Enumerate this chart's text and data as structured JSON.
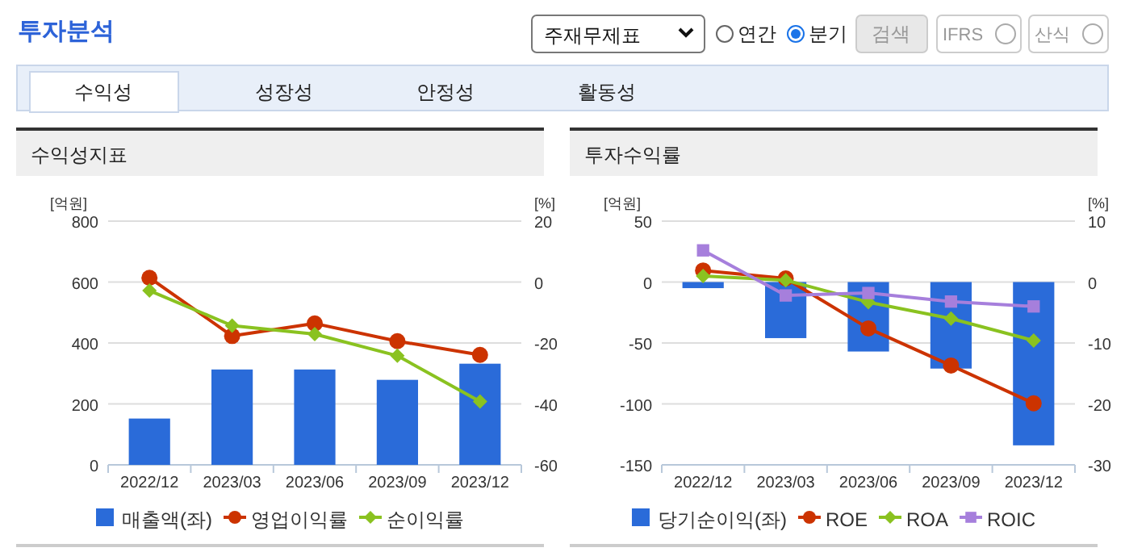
{
  "chart_data": [
    {
      "type": "other",
      "title": "투자분석",
      "annotations": [
        "주재무제표",
        "연간",
        "분기",
        "검색",
        "IFRS",
        "산식",
        "수익성",
        "성장성",
        "안정성",
        "활동성"
      ]
    },
    {
      "type": "bar",
      "title": "수익성지표",
      "ylabel": "[억원]",
      "y2label": "[%]",
      "categories": [
        "2022/12",
        "2023/03",
        "2023/06",
        "2023/09",
        "2023/12"
      ],
      "ylim": [
        0,
        800
      ],
      "yticks": [
        0,
        200,
        400,
        600,
        800
      ],
      "y2lim": [
        -60,
        20
      ],
      "y2ticks": [
        -60,
        -40,
        -20,
        0,
        20
      ],
      "grid": "y",
      "legend": "bottom",
      "line_style": "solid",
      "series": [
        {
          "name": "매출액(좌)",
          "type": "bar",
          "color": "#2a6bd9",
          "values": [
            152,
            313,
            313,
            279,
            332
          ]
        },
        {
          "name": "영업이익률",
          "type": "line",
          "axis": "y2",
          "marker": "circle",
          "color": "#cc3300",
          "values": [
            1.4,
            -17.7,
            -13.6,
            -19.4,
            -23.9
          ]
        },
        {
          "name": "순이익률",
          "type": "line",
          "axis": "y2",
          "marker": "diamond",
          "color": "#8ac220",
          "values": [
            -2.8,
            -14.3,
            -17.1,
            -24.2,
            -39.2
          ]
        }
      ]
    },
    {
      "type": "bar",
      "title": "투자수익률",
      "ylabel": "[억원]",
      "y2label": "[%]",
      "categories": [
        "2022/12",
        "2023/03",
        "2023/06",
        "2023/09",
        "2023/12"
      ],
      "ylim": [
        -150,
        50
      ],
      "yticks": [
        -150,
        -100,
        -50,
        0,
        50
      ],
      "y2lim": [
        -30,
        10
      ],
      "y2ticks": [
        -30,
        -20,
        -10,
        0,
        10
      ],
      "grid": "y",
      "legend": "bottom",
      "line_style": "solid",
      "series": [
        {
          "name": "당기순이익(좌)",
          "type": "bar",
          "color": "#2a6bd9",
          "values": [
            -5,
            -46,
            -57,
            -71,
            -134
          ]
        },
        {
          "name": "ROE",
          "type": "line",
          "axis": "y2",
          "marker": "circle",
          "color": "#cc3300",
          "values": [
            1.9,
            0.6,
            -7.6,
            -13.7,
            -19.9
          ]
        },
        {
          "name": "ROA",
          "type": "line",
          "axis": "y2",
          "marker": "diamond",
          "color": "#8ac220",
          "values": [
            1.0,
            0.3,
            -3.3,
            -6.0,
            -9.6
          ]
        },
        {
          "name": "ROIC",
          "type": "line",
          "axis": "y2",
          "marker": "square",
          "color": "#a67fdc",
          "values": [
            5.2,
            -2.2,
            -1.8,
            -3.2,
            -4.0
          ]
        }
      ]
    }
  ]
}
